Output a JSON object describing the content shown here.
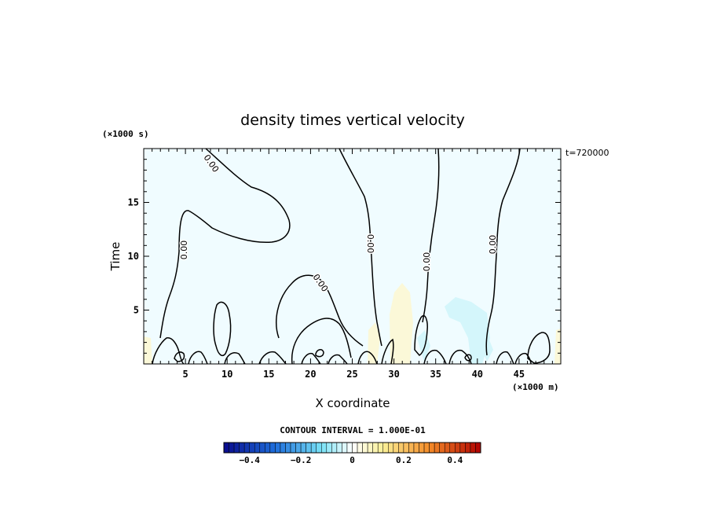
{
  "chart_data": {
    "type": "contour",
    "title": "density times vertical velocity",
    "xlabel": "X coordinate",
    "ylabel": "Time",
    "x_unit": "(×1000 m)",
    "y_unit": "(×1000 s)",
    "time_stamp": "t=720000",
    "xlim": [
      0,
      50
    ],
    "ylim": [
      0,
      20
    ],
    "x_ticks": [
      5,
      10,
      15,
      20,
      25,
      30,
      35,
      40,
      45
    ],
    "y_ticks": [
      5,
      10,
      15
    ],
    "contour_labels": [
      "0.00",
      "0.00",
      "0.00",
      "0.00",
      "0.00",
      "0.00"
    ],
    "contour_interval": "CONTOUR INTERVAL = 1.000E-01",
    "colorbar": {
      "range": [
        -0.5,
        0.5
      ],
      "ticks": [
        "−0.4",
        "−0.2",
        "0",
        "0.2",
        "0.4"
      ],
      "low_color": "#0a0a8c",
      "mid_color": "#ffffff",
      "high_color": "#b00000"
    },
    "fill_colors": {
      "weak_negative": "#f0fcff",
      "moderate_negative": "#d4f6fb",
      "weak_positive": "#fbf8d8"
    }
  }
}
